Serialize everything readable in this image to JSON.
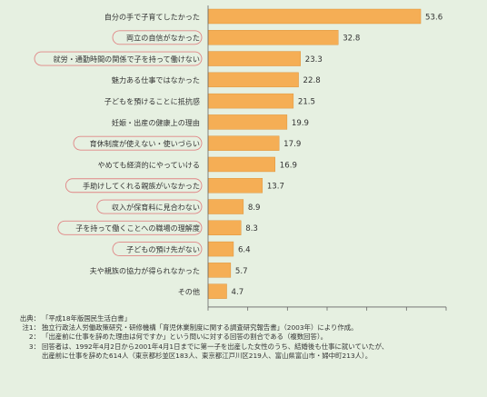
{
  "chart_data": {
    "type": "bar",
    "orientation": "horizontal",
    "categories": [
      "自分の手で子育てしたかった",
      "両立の自信がなかった",
      "就労・通勤時間の関係で子を持って働けない",
      "魅力ある仕事ではなかった",
      "子どもを預けることに抵抗感",
      "妊娠・出産の健康上の理由",
      "育休制度が使えない・使いづらい",
      "やめても経済的にやっていける",
      "手助けしてくれる親族がいなかった",
      "収入が保育料に見合わない",
      "子を持って働くことへの職場の理解度",
      "子どもの預け先がない",
      "夫や親族の協力が得られなかった",
      "その他"
    ],
    "values": [
      53.6,
      32.8,
      23.3,
      22.8,
      21.5,
      19.9,
      17.9,
      16.9,
      13.7,
      8.9,
      8.3,
      6.4,
      5.7,
      4.7
    ],
    "value_labels": [
      "53.6",
      "32.8",
      "23.3",
      "22.8",
      "21.5",
      "19.9",
      "17.9",
      "16.9",
      "13.7",
      "8.9",
      "8.3",
      "6.4",
      "5.7",
      "4.7"
    ],
    "highlighted": [
      false,
      true,
      true,
      false,
      false,
      false,
      true,
      false,
      true,
      true,
      true,
      true,
      false,
      false
    ],
    "xlim": [
      0,
      60
    ],
    "xticks": [
      "0",
      "10",
      "20",
      "30",
      "40",
      "50",
      "60"
    ],
    "xunit": "（%）",
    "grid": false,
    "legend": "none",
    "colors": {
      "bar": "#f5ae55",
      "bar_edge": "#d98a2c",
      "highlight_border": "#e08585",
      "axis": "#666666"
    }
  },
  "notes": {
    "source": {
      "label": "出典：",
      "text": "「平成18年版国民生活白書」"
    },
    "note1": {
      "label": "注1：",
      "text": "独立行政法人労働政策研究・研修機構「育児休業制度に関する調査研究報告書」（2003年）により作成。"
    },
    "note2": {
      "label": "2：",
      "text": "「出産前に仕事を辞めた理由は何ですか」という問いに対する回答の割合である（複数回答）。"
    },
    "note3": {
      "label": "3：",
      "text": "回答者は、1992年4月2日から2001年4月1日までに第一子を出産した女性のうち、結婚後も仕事に就いていたが、"
    },
    "note3_cont": "出産前に仕事を辞めた614人（東京都杉並区183人、東京都江戸川区219人、富山県富山市・婦中町213人）。"
  }
}
